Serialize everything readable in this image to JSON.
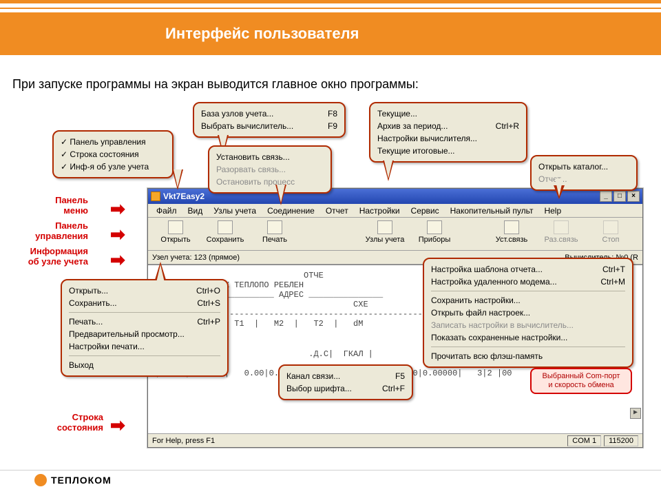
{
  "header": {
    "title": "Интерфейс пользователя"
  },
  "intro": "При запуске программы на экран выводится главное окно программы:",
  "colors": {
    "accent": "#f08c22",
    "callout_border": "#b02a00",
    "red": "#d40000",
    "win_bg": "#ece9d8"
  },
  "side_labels": {
    "menu": "Панель\nменю",
    "toolbar": "Панель\nуправления",
    "node": "Информация\nоб узле учета",
    "status": "Строка\nсостояния"
  },
  "popup_view": {
    "items": [
      "Панель управления",
      "Строка состояния",
      "Инф-я об узле учета"
    ]
  },
  "popup_nodes": {
    "rows": [
      {
        "label": "База узлов учета...",
        "shortcut": "F8"
      },
      {
        "label": "Выбрать вычислитель...",
        "shortcut": "F9"
      }
    ]
  },
  "popup_conn": {
    "rows": [
      {
        "label": "Установить связь...",
        "disabled": false
      },
      {
        "label": "Разорвать связь...",
        "disabled": true
      },
      {
        "label": "Остановить процесс",
        "disabled": true
      }
    ]
  },
  "popup_report": {
    "rows": [
      {
        "label": "Текущие..."
      },
      {
        "label": "Архив за период...",
        "shortcut": "Ctrl+R"
      },
      {
        "label": "Настройки вычислителя..."
      },
      {
        "label": "Текущие итоговые..."
      }
    ]
  },
  "popup_store": {
    "rows": [
      {
        "label": "Открыть каталог..."
      },
      {
        "label": "Отчет...",
        "disabled": true
      }
    ]
  },
  "popup_file": {
    "group1": [
      {
        "label": "Открыть...",
        "shortcut": "Ctrl+O"
      },
      {
        "label": "Сохранить...",
        "shortcut": "Ctrl+S"
      }
    ],
    "group2": [
      {
        "label": "Печать...",
        "shortcut": "Ctrl+P"
      },
      {
        "label": "Предварительный просмотр..."
      },
      {
        "label": "Настройки печати..."
      }
    ],
    "group3": [
      {
        "label": "Выход"
      }
    ]
  },
  "popup_settings": {
    "group1": [
      {
        "label": "Настройка шаблона отчета...",
        "shortcut": "Ctrl+T"
      },
      {
        "label": "Настройка удаленного модема...",
        "shortcut": "Ctrl+M"
      }
    ],
    "group2": [
      {
        "label": "Сохранить настройки..."
      },
      {
        "label": "Открыть файл настроек..."
      },
      {
        "label": "Записать настройки в вычислитель...",
        "disabled": true
      },
      {
        "label": "Показать сохраненные настройки..."
      }
    ],
    "group3": [
      {
        "label": "Прочитать всю флэш-память"
      }
    ]
  },
  "popup_service": {
    "rows": [
      {
        "label": "Канал связи...",
        "shortcut": "F5"
      },
      {
        "label": "Выбор шрифта...",
        "shortcut": "Ctrl+F"
      }
    ]
  },
  "app": {
    "title": "Vkt7Easy2",
    "menubar": [
      "Файл",
      "Вид",
      "Узлы учета",
      "Соединение",
      "Отчет",
      "Настройки",
      "Сервис",
      "Накопительный пульт",
      "Help"
    ],
    "toolbar": [
      {
        "label": "Открыть",
        "icon": "open"
      },
      {
        "label": "Сохранить",
        "icon": "save"
      },
      {
        "label": "Печать",
        "icon": "print"
      },
      {
        "label": "Узлы учета",
        "icon": "nodes",
        "gap": true
      },
      {
        "label": "Приборы",
        "icon": "devices"
      },
      {
        "label": "Уст.связь",
        "icon": "connect",
        "gap": true
      },
      {
        "label": "Раз.связь",
        "icon": "disconnect",
        "disabled": true
      },
      {
        "label": "Стоп",
        "icon": "stop",
        "disabled": true
      }
    ],
    "info_left": "Узел учета: 123  (прямое)",
    "info_right": "Вычислитель: №0 (R",
    "doc": {
      "l1": "                              ОТЧЕ",
      "l2": "УНЫХ ПАРАМЕТРАХ ТЕПЛОПО РЕБЛЕН",
      "l3": "________________________ АДРЕС _______________",
      "l4": "                                        СХЕ",
      "l5": "----------------------------------------------------------------",
      "l6": "           |    T1  |   M2  |   T2  |   dM",
      "l7": "РАД.C|                         .Д.C|  ГКАЛ |",
      "l8": "|19/05|0.00000|   0.00|0.          .6..|0.00000| 0.00|0.00000|   3|2 |00"
    },
    "status": {
      "help": "For Help, press F1",
      "com": "COM 1",
      "baud": "115200"
    }
  },
  "mini_callout": "Выбранный Com-порт\nи скорость обмена",
  "footer_brand": "ТЕПЛОКОМ"
}
